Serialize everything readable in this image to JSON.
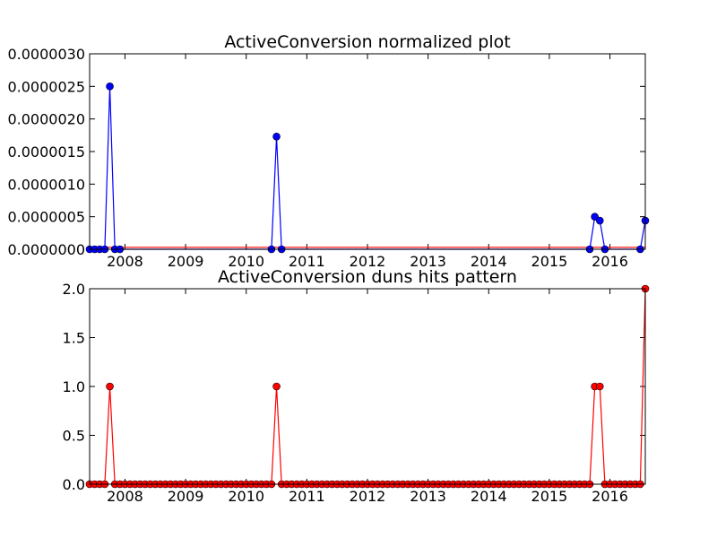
{
  "chart_data": [
    {
      "type": "line",
      "title": "ActiveConversion normalized plot",
      "xlabel": "",
      "ylabel": "",
      "xlim": [
        "2007-06",
        "2016-08"
      ],
      "ylim": [
        0,
        3e-06
      ],
      "x_ticks": [
        "2008",
        "2009",
        "2010",
        "2011",
        "2012",
        "2013",
        "2014",
        "2015",
        "2016"
      ],
      "y_ticks": [
        "0.0000000",
        "0.0000005",
        "0.0000010",
        "0.0000015",
        "0.0000020",
        "0.0000025",
        "0.0000030"
      ],
      "grid": false,
      "series": [
        {
          "color": "#0000ff",
          "marker": "circle",
          "points": [
            [
              "2007-06",
              0
            ],
            [
              "2007-07",
              0
            ],
            [
              "2007-08",
              0
            ],
            [
              "2007-09",
              0
            ],
            [
              "2007-10",
              2.5e-06
            ],
            [
              "2007-11",
              0
            ],
            [
              "2007-12",
              0
            ],
            [
              "2010-06",
              0
            ],
            [
              "2010-07",
              1.73e-06
            ],
            [
              "2010-08",
              0
            ],
            [
              "2015-09",
              0
            ],
            [
              "2015-10",
              5e-07
            ],
            [
              "2015-11",
              4.4e-07
            ],
            [
              "2015-12",
              0
            ],
            [
              "2016-07",
              0
            ],
            [
              "2016-08",
              4.4e-07
            ]
          ]
        },
        {
          "color": "#ff0000",
          "marker": "none",
          "points": [
            [
              "2007-06",
              3e-08
            ],
            [
              "2016-08",
              3e-08
            ]
          ]
        }
      ]
    },
    {
      "type": "line",
      "title": "ActiveConversion duns hits pattern",
      "xlabel": "",
      "ylabel": "",
      "xlim": [
        "2007-06",
        "2016-08"
      ],
      "ylim": [
        0,
        2.0
      ],
      "x_ticks": [
        "2008",
        "2009",
        "2010",
        "2011",
        "2012",
        "2013",
        "2014",
        "2015",
        "2016"
      ],
      "y_ticks": [
        "0.0",
        "0.5",
        "1.0",
        "1.5",
        "2.0"
      ],
      "grid": false,
      "series": [
        {
          "color": "#ff0000",
          "marker": "circle",
          "start": "2007-06",
          "values": [
            0,
            0,
            0,
            0,
            1,
            0,
            0,
            0,
            0,
            0,
            0,
            0,
            0,
            0,
            0,
            0,
            0,
            0,
            0,
            0,
            0,
            0,
            0,
            0,
            0,
            0,
            0,
            0,
            0,
            0,
            0,
            0,
            0,
            0,
            0,
            0,
            0,
            1,
            0,
            0,
            0,
            0,
            0,
            0,
            0,
            0,
            0,
            0,
            0,
            0,
            0,
            0,
            0,
            0,
            0,
            0,
            0,
            0,
            0,
            0,
            0,
            0,
            0,
            0,
            0,
            0,
            0,
            0,
            0,
            0,
            0,
            0,
            0,
            0,
            0,
            0,
            0,
            0,
            0,
            0,
            0,
            0,
            0,
            0,
            0,
            0,
            0,
            0,
            0,
            0,
            0,
            0,
            0,
            0,
            0,
            0,
            0,
            0,
            0,
            0,
            1,
            1,
            0,
            0,
            0,
            0,
            0,
            0,
            0,
            0,
            2
          ]
        }
      ]
    }
  ]
}
